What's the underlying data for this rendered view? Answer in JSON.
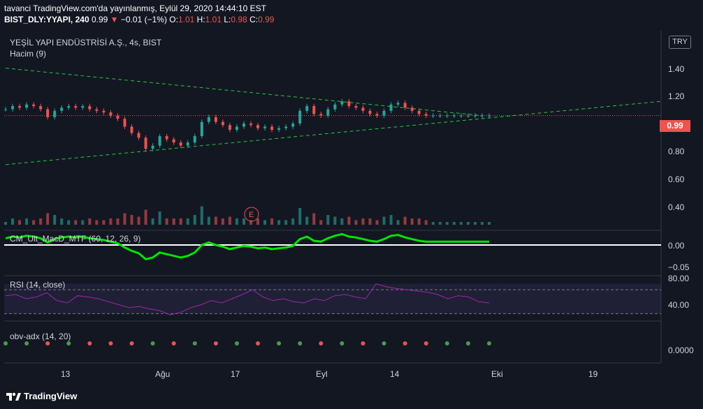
{
  "header": {
    "line1": "tavanci TradingView.com'da yayınlanmış, Eylül 29, 2020 14:44:10 EST",
    "symbol": "BIST_DLY:YYAPI, 240",
    "last": "0.99",
    "change_arrow": "▼",
    "change": "−0.01 (−1%)",
    "o_label": "O:",
    "o_value": "1.01",
    "h_label": "H:",
    "h_value": "1.01",
    "l_label": "L:",
    "l_value": "0.98",
    "c_label": "C:",
    "c_value": "0.99"
  },
  "main_panel": {
    "title": "YEŞİL YAPI ENDÜSTRİSİ A.Ş., 4s, BIST",
    "volume_label": "Hacim (9)",
    "currency": "TRY",
    "price_badge": "0.99",
    "y_ticks": [
      "1.40",
      "1.20",
      "1.00",
      "0.80",
      "0.60",
      "0.40"
    ],
    "event_marker": "E"
  },
  "macd_panel": {
    "label": "CM_Ult_MacD_MTF (60, 12, 26, 9)",
    "y_ticks": [
      "0.00",
      "−0.05"
    ]
  },
  "rsi_panel": {
    "label": "RSI (14, close)",
    "y_ticks": [
      "80.00",
      "40.00"
    ]
  },
  "obv_panel": {
    "label": "obv-adx (14, 20)",
    "y_ticks": [
      "0.0000"
    ]
  },
  "x_axis": {
    "ticks": [
      "13",
      "Ağu",
      "17",
      "Eyl",
      "14",
      "Eki",
      "19"
    ]
  },
  "footer": {
    "brand": "TradingView"
  },
  "colors": {
    "background": "#131722",
    "up": "#26a69a",
    "down": "#ef5350",
    "trendline": "#27c93f",
    "rsi": "#9c27b0",
    "macd_green": "#00e600",
    "macd_red": "#cc0000"
  },
  "chart_data": [
    {
      "type": "line",
      "title": "YEŞİL YAPI ENDÜSTRİSİ A.Ş., 4s, BIST",
      "x_ticks": [
        "13",
        "Ağu",
        "17",
        "Eyl",
        "14",
        "Eki",
        "19"
      ],
      "ylim": [
        0.3,
        1.5
      ],
      "series": [
        {
          "name": "price",
          "x": [
            0,
            5,
            10,
            15,
            20,
            25,
            30,
            35,
            40,
            45,
            50,
            55,
            60,
            65,
            70,
            75,
            80,
            85,
            90,
            95,
            100,
            105,
            110,
            115,
            120,
            125,
            130,
            135,
            140,
            145,
            150,
            155,
            160,
            165,
            170,
            175,
            180,
            185,
            190,
            195,
            200,
            205,
            210,
            215,
            220,
            225,
            230,
            235,
            240,
            245,
            250,
            255,
            260,
            265,
            270,
            275,
            280,
            285,
            290,
            295,
            300,
            305,
            310,
            315,
            320,
            325,
            330,
            335,
            340,
            345
          ],
          "y": [
            1.03,
            1.05,
            1.04,
            1.06,
            1.05,
            1.03,
            0.98,
            1.02,
            1.04,
            1.05,
            1.04,
            1.05,
            1.03,
            1.02,
            1.01,
            0.99,
            0.97,
            0.92,
            0.88,
            0.85,
            0.78,
            0.8,
            0.86,
            0.84,
            0.82,
            0.8,
            0.82,
            0.86,
            0.95,
            0.98,
            0.95,
            0.93,
            0.9,
            0.92,
            0.94,
            0.93,
            0.91,
            0.92,
            0.9,
            0.91,
            0.92,
            0.94,
            1.02,
            1.05,
            1.0,
            0.99,
            1.03,
            1.06,
            1.08,
            1.05,
            1.04,
            1.02,
            1.0,
            0.99,
            1.02,
            1.06,
            1.07,
            1.04,
            1.02,
            1.0,
            0.99,
            0.99,
            0.99,
            0.99,
            0.99,
            0.99,
            0.99,
            0.99,
            0.99,
            0.99
          ]
        }
      ],
      "trendlines": [
        {
          "name": "upper",
          "from": [
            0,
            1.29
          ],
          "to": [
            340,
            0.99
          ]
        },
        {
          "name": "lower",
          "from": [
            0,
            0.68
          ],
          "to": [
            470,
            1.08
          ]
        }
      ]
    },
    {
      "type": "line",
      "title": "RSI (14, close)",
      "ylim": [
        20,
        90
      ],
      "series": [
        {
          "name": "RSI",
          "values": [
            60,
            62,
            55,
            58,
            65,
            52,
            48,
            60,
            58,
            55,
            50,
            45,
            40,
            42,
            38,
            35,
            28,
            32,
            40,
            45,
            52,
            48,
            55,
            62,
            70,
            58,
            52,
            55,
            50,
            48,
            55,
            52,
            60,
            62,
            58,
            55,
            80,
            75,
            72,
            70,
            68,
            66,
            62,
            55,
            60,
            58,
            50,
            48
          ]
        }
      ]
    }
  ]
}
